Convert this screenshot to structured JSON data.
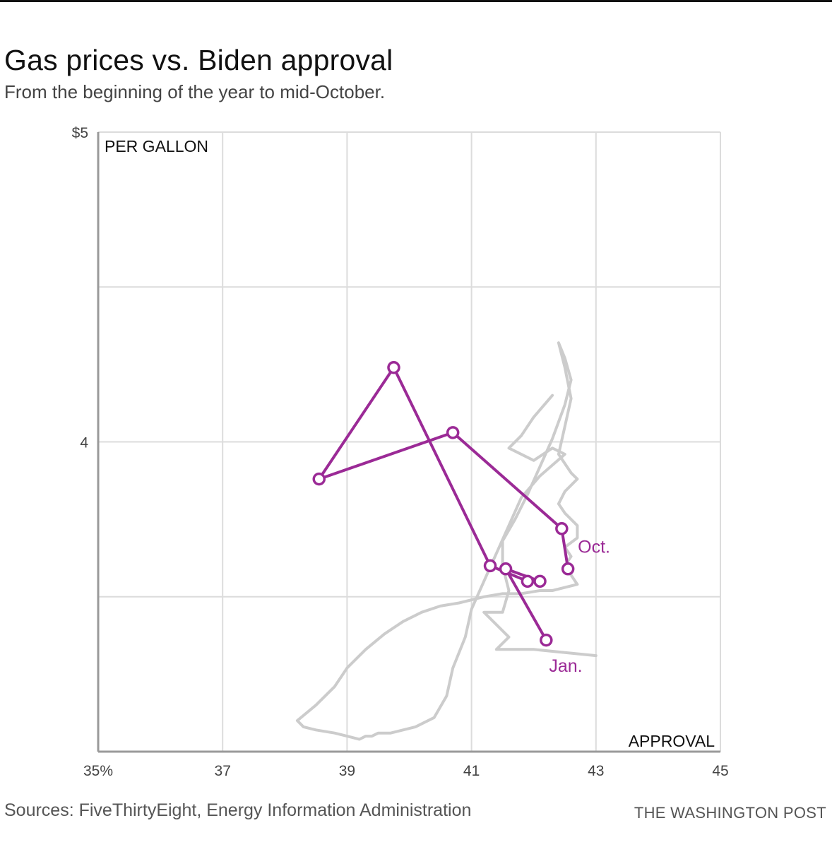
{
  "header": {
    "title": "Gas prices vs. Biden approval",
    "subtitle": "From the beginning of the year to mid-October."
  },
  "footer": {
    "source": "Sources: FiveThirtyEight, Energy Information Administration",
    "credit": "THE WASHINGTON POST"
  },
  "colors": {
    "highlight": "#9b2a96",
    "daily_line": "#cccccc",
    "grid": "#dcdcdc",
    "axis": "#9a9a9a",
    "text": "#111111"
  },
  "chart_data": {
    "type": "line",
    "title": "Gas prices vs. Biden approval",
    "subtitle": "From the beginning of the year to mid-October.",
    "xlabel": "APPROVAL",
    "ylabel": "PER GALLON",
    "xlim": [
      35,
      45
    ],
    "ylim": [
      3,
      5
    ],
    "x_ticks": [
      {
        "value": 35,
        "label": "35%"
      },
      {
        "value": 37,
        "label": "37"
      },
      {
        "value": 39,
        "label": "39"
      },
      {
        "value": 41,
        "label": "41"
      },
      {
        "value": 43,
        "label": "43"
      },
      {
        "value": 45,
        "label": "45"
      }
    ],
    "y_ticks": [
      {
        "value": 5,
        "label": "$5"
      },
      {
        "value": 4,
        "label": "4"
      }
    ],
    "grid": true,
    "series": [
      {
        "role": "daily",
        "style": "gray line",
        "x": [
          43.0,
          42.5,
          42.0,
          41.4,
          41.6,
          41.2,
          41.5,
          41.6,
          41.5,
          41.5,
          41.7,
          41.9,
          42.1,
          42.3,
          42.5,
          42.6,
          42.5,
          42.4,
          42.5,
          42.6,
          42.5,
          42.4,
          42.6,
          42.7,
          42.5,
          42.4,
          42.5,
          42.7,
          42.7,
          42.5,
          42.6,
          42.5,
          42.6,
          42.7,
          42.5,
          42.3,
          42.1,
          41.8,
          41.5,
          41.2,
          40.8,
          40.5,
          40.2,
          39.9,
          39.6,
          39.3,
          39.0,
          38.8,
          38.5,
          38.2,
          38.3,
          38.5,
          38.8,
          39.0,
          39.2,
          39.3,
          39.4,
          39.5,
          39.7,
          39.9,
          40.1,
          40.4,
          40.6,
          40.7,
          40.9,
          41.0,
          41.2,
          41.4,
          41.6,
          41.8,
          42.1,
          42.5,
          42.3,
          42.0,
          41.6,
          41.8,
          42.0,
          42.3
        ],
        "y": [
          3.31,
          3.32,
          3.33,
          3.33,
          3.37,
          3.45,
          3.45,
          3.52,
          3.6,
          3.68,
          3.75,
          3.83,
          3.92,
          4.01,
          4.12,
          4.2,
          4.27,
          4.32,
          4.24,
          4.14,
          4.05,
          3.96,
          3.9,
          3.88,
          3.84,
          3.8,
          3.77,
          3.73,
          3.69,
          3.66,
          3.63,
          3.6,
          3.57,
          3.54,
          3.53,
          3.52,
          3.52,
          3.51,
          3.51,
          3.5,
          3.48,
          3.47,
          3.45,
          3.42,
          3.38,
          3.33,
          3.27,
          3.21,
          3.15,
          3.1,
          3.08,
          3.07,
          3.06,
          3.05,
          3.04,
          3.05,
          3.05,
          3.06,
          3.06,
          3.07,
          3.08,
          3.11,
          3.18,
          3.27,
          3.37,
          3.46,
          3.55,
          3.64,
          3.73,
          3.82,
          3.89,
          3.96,
          3.98,
          3.94,
          3.98,
          4.02,
          4.08,
          4.15
        ]
      },
      {
        "role": "monthly",
        "style": "purple line with markers",
        "x": [
          42.2,
          41.55,
          42.1,
          41.9,
          41.3,
          39.75,
          38.55,
          40.7,
          42.45,
          42.55
        ],
        "y": [
          3.36,
          3.59,
          3.55,
          3.55,
          3.6,
          4.24,
          3.88,
          4.03,
          3.72,
          3.59
        ]
      }
    ],
    "annotations": [
      {
        "text": "Jan.",
        "near": "first monthly point"
      },
      {
        "text": "Oct.",
        "near": "last monthly point"
      }
    ]
  }
}
